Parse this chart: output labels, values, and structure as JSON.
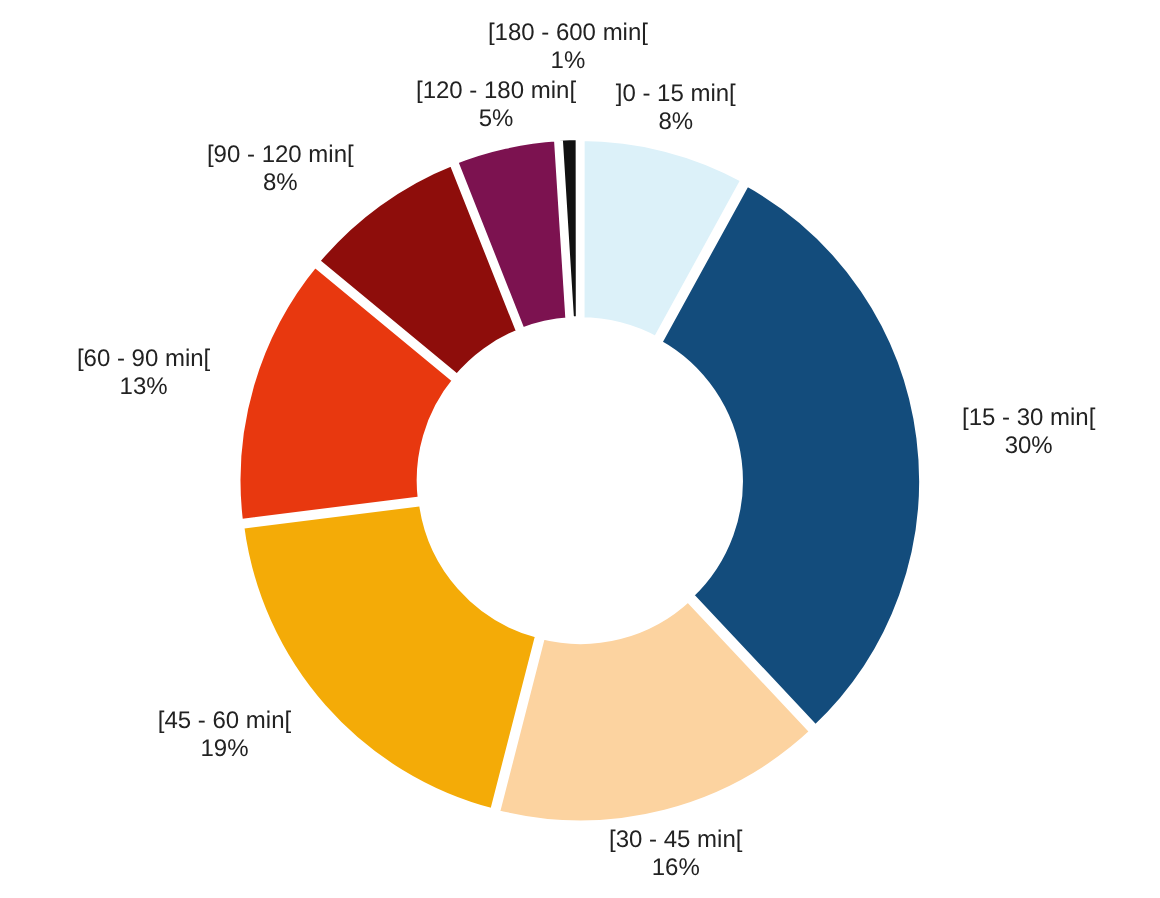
{
  "chart_data": {
    "type": "donut",
    "categories": [
      "]0 - 15 min[",
      "[15 - 30 min[",
      "[30 - 45 min[",
      "[45 - 60 min[",
      "[60 - 90 min[",
      "[90 - 120 min[",
      "[120 - 180 min[",
      "[180 - 600 min["
    ],
    "values": [
      8,
      30,
      16,
      19,
      13,
      8,
      5,
      1
    ],
    "value_labels": [
      "8%",
      "30%",
      "16%",
      "19%",
      "13%",
      "8%",
      "5%",
      "1%"
    ],
    "colors": [
      "#dcf1f9",
      "#134c7c",
      "#fcd3a0",
      "#f4ab07",
      "#e8380f",
      "#8e0d0b",
      "#7c1250",
      "#111111"
    ],
    "legend": false
  }
}
